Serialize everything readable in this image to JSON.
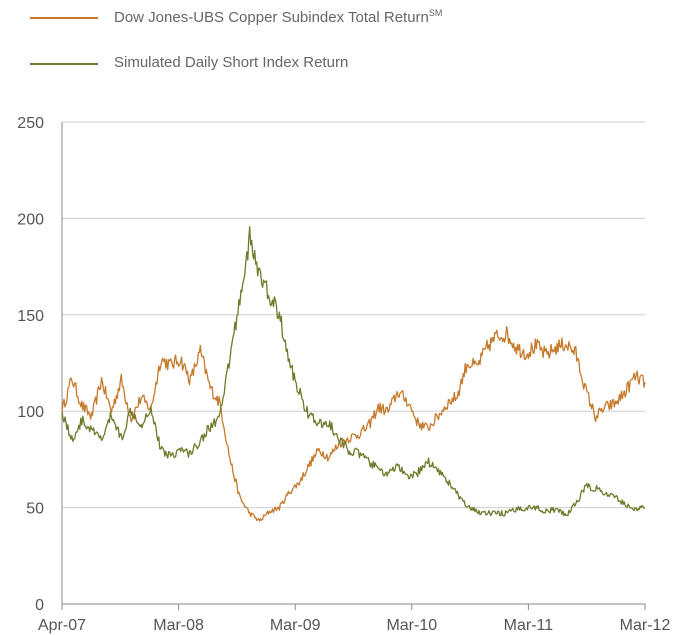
{
  "chart_data": {
    "type": "line",
    "title": "",
    "xlabel": "",
    "ylabel": "",
    "x_ticks": [
      "Apr-07",
      "Mar-08",
      "Mar-09",
      "Mar-10",
      "Mar-11",
      "Mar-12"
    ],
    "y_ticks": [
      0,
      50,
      100,
      150,
      200,
      250
    ],
    "ylim": [
      0,
      250
    ],
    "grid": "horizontal",
    "legend_position": "top-left",
    "series": [
      {
        "name": "Dow Jones-UBS Copper Subindex Total Return",
        "name_superscript": "SM",
        "color": "#c67a2c",
        "x": [
          "Apr-07",
          "May-07",
          "Jun-07",
          "Jul-07",
          "Aug-07",
          "Sep-07",
          "Oct-07",
          "Nov-07",
          "Dec-07",
          "Jan-08",
          "Feb-08",
          "Mar-08",
          "Apr-08",
          "May-08",
          "Jun-08",
          "Jul-08",
          "Aug-08",
          "Sep-08",
          "Oct-08",
          "Nov-08",
          "Dec-08",
          "Jan-09",
          "Feb-09",
          "Mar-09",
          "Apr-09",
          "May-09",
          "Jun-09",
          "Jul-09",
          "Aug-09",
          "Sep-09",
          "Oct-09",
          "Nov-09",
          "Dec-09",
          "Jan-10",
          "Feb-10",
          "Mar-10",
          "Apr-10",
          "May-10",
          "Jun-10",
          "Jul-10",
          "Aug-10",
          "Sep-10",
          "Oct-10",
          "Nov-10",
          "Dec-10",
          "Jan-11",
          "Feb-11",
          "Mar-11",
          "Apr-11",
          "May-11",
          "Jun-11",
          "Jul-11",
          "Aug-11",
          "Sep-11",
          "Oct-11",
          "Nov-11",
          "Dec-11",
          "Jan-12",
          "Feb-12",
          "Mar-12"
        ],
        "values": [
          100,
          117,
          103,
          97,
          116,
          100,
          116,
          96,
          107,
          101,
          127,
          124,
          127,
          116,
          131,
          112,
          104,
          75,
          55,
          47,
          43,
          48,
          50,
          58,
          63,
          72,
          80,
          76,
          83,
          86,
          88,
          92,
          102,
          100,
          110,
          105,
          94,
          91,
          97,
          104,
          108,
          125,
          123,
          133,
          139,
          140,
          133,
          130,
          134,
          129,
          133,
          135,
          130,
          111,
          97,
          102,
          104,
          110,
          118,
          115
        ]
      },
      {
        "name": "Simulated Daily Short Index Return",
        "color": "#6f7a2c",
        "x": [
          "Apr-07",
          "May-07",
          "Jun-07",
          "Jul-07",
          "Aug-07",
          "Sep-07",
          "Oct-07",
          "Nov-07",
          "Dec-07",
          "Jan-08",
          "Feb-08",
          "Mar-08",
          "Apr-08",
          "May-08",
          "Jun-08",
          "Jul-08",
          "Aug-08",
          "Sep-08",
          "Oct-08",
          "Nov-08",
          "Dec-08",
          "Jan-09",
          "Feb-09",
          "Mar-09",
          "Apr-09",
          "May-09",
          "Jun-09",
          "Jul-09",
          "Aug-09",
          "Sep-09",
          "Oct-09",
          "Nov-09",
          "Dec-09",
          "Jan-10",
          "Feb-10",
          "Mar-10",
          "Apr-10",
          "May-10",
          "Jun-10",
          "Jul-10",
          "Aug-10",
          "Sep-10",
          "Oct-10",
          "Nov-10",
          "Dec-10",
          "Jan-11",
          "Feb-11",
          "Mar-11",
          "Apr-11",
          "May-11",
          "Jun-11",
          "Jul-11",
          "Aug-11",
          "Sep-11",
          "Oct-11",
          "Nov-11",
          "Dec-11",
          "Jan-12",
          "Feb-12",
          "Mar-12"
        ],
        "values": [
          100,
          85,
          95,
          90,
          85,
          98,
          86,
          101,
          93,
          102,
          80,
          77,
          80,
          78,
          85,
          92,
          97,
          128,
          158,
          190,
          170,
          160,
          150,
          125,
          110,
          98,
          93,
          94,
          85,
          80,
          78,
          74,
          70,
          67,
          72,
          65,
          68,
          74,
          70,
          64,
          57,
          50,
          48,
          47,
          47,
          47,
          49,
          50,
          50,
          48,
          49,
          46,
          52,
          61,
          60,
          57,
          55,
          52,
          49,
          50
        ]
      }
    ]
  }
}
